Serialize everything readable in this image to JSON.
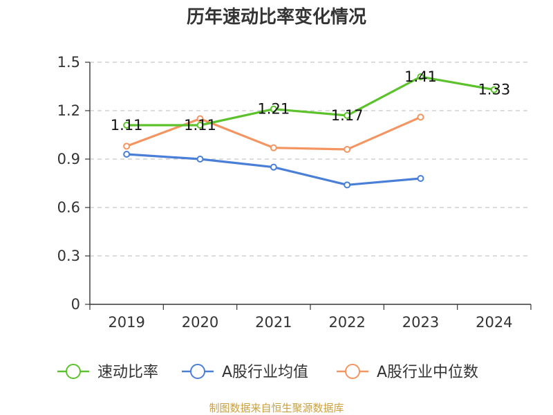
{
  "chart_data": {
    "type": "line",
    "title": "历年速动比率变化情况",
    "categories": [
      "2019",
      "2020",
      "2021",
      "2022",
      "2023",
      "2024"
    ],
    "ylim": [
      0,
      1.5
    ],
    "yticks": [
      "0",
      "0.3",
      "0.6",
      "0.9",
      "1.2",
      "1.5"
    ],
    "grid": true,
    "legend_position": "bottom",
    "series": [
      {
        "name": "速动比率",
        "color": "#5cc22b",
        "values": [
          1.11,
          1.11,
          1.21,
          1.17,
          1.41,
          1.33
        ],
        "labels": [
          "1.11",
          "1.11",
          "1.21",
          "1.17",
          "1.41",
          "1.33"
        ]
      },
      {
        "name": "A股行业均值",
        "color": "#4a7fd8",
        "values": [
          0.93,
          0.9,
          0.85,
          0.74,
          0.78,
          null
        ]
      },
      {
        "name": "A股行业中位数",
        "color": "#f49460",
        "values": [
          0.98,
          1.15,
          0.97,
          0.96,
          1.16,
          null
        ]
      }
    ]
  },
  "source_note": "制图数据来自恒生聚源数据库"
}
